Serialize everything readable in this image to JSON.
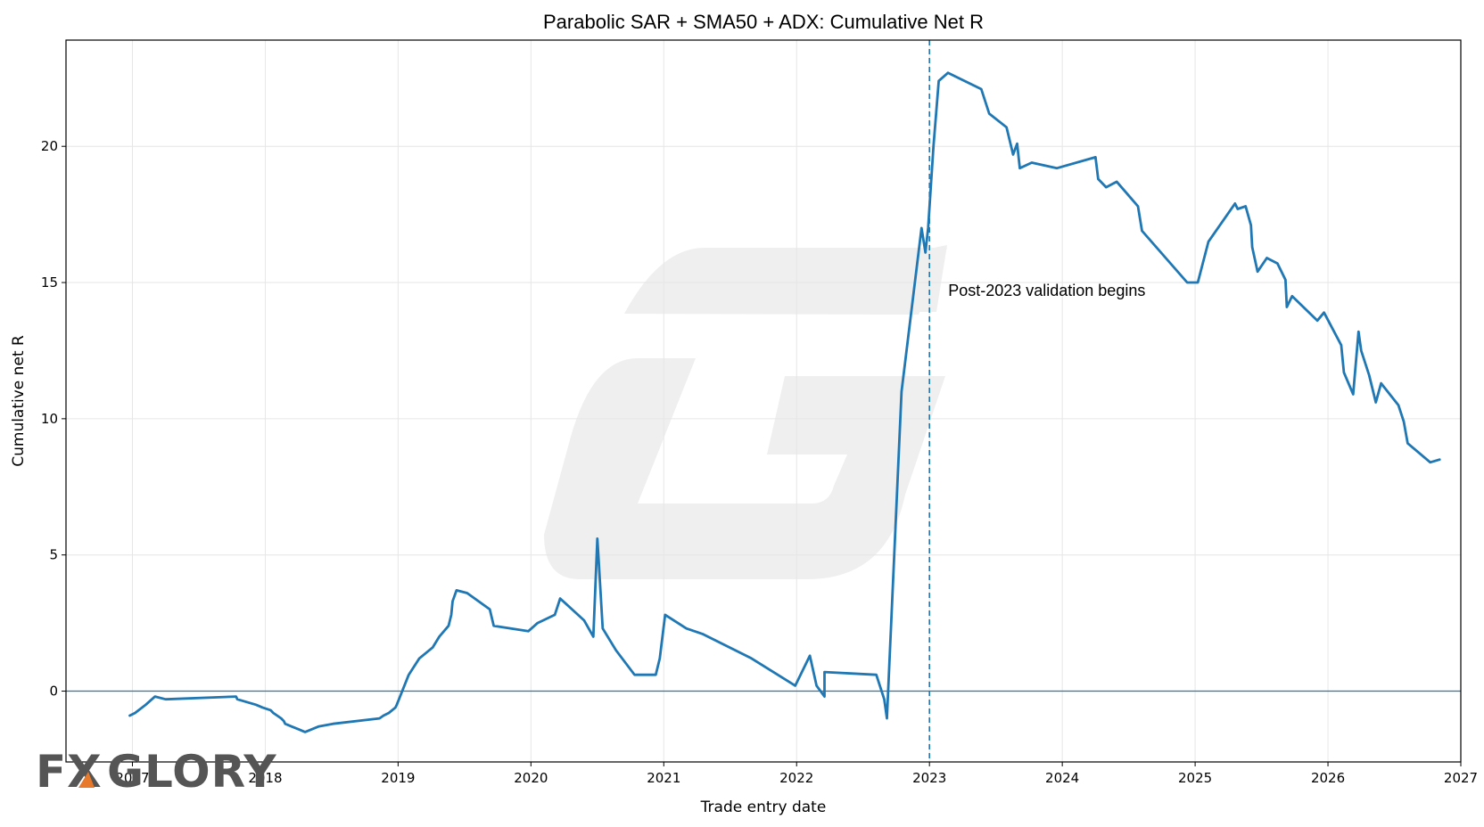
{
  "chart_data": {
    "type": "line",
    "title": "Parabolic SAR + SMA50 + ADX: Cumulative Net R",
    "xlabel": "Trade entry date",
    "ylabel": "Cumulative net R",
    "xlim": [
      2016.5,
      2027.0
    ],
    "ylim": [
      -2.6,
      23.9
    ],
    "xticks": [
      2017,
      2018,
      2019,
      2020,
      2021,
      2022,
      2023,
      2024,
      2025,
      2026,
      2027
    ],
    "yticks": [
      0,
      5,
      10,
      15,
      20
    ],
    "grid": true,
    "zero_line": 0,
    "vertical_line": {
      "x": 2023.0,
      "style": "dashed",
      "label": "Post-2023 validation begins",
      "label_y": 14.7
    },
    "colors": {
      "line": "#1f77b4",
      "zero_line": "#1f77b4",
      "grid": "#e6e6e6"
    },
    "watermark_text": "FXGLORY",
    "series": [
      {
        "x": [
          2016.98,
          2017.02,
          2017.1,
          2017.17,
          2017.25,
          2017.78,
          2017.79,
          2017.93,
          2017.98,
          2018.04,
          2018.06,
          2018.09,
          2018.12,
          2018.14,
          2018.15,
          2018.2,
          2018.25,
          2018.3,
          2018.4,
          2018.51,
          2018.86,
          2018.89,
          2018.93,
          2018.98,
          2018.99,
          2019.08,
          2019.16,
          2019.26,
          2019.31,
          2019.38,
          2019.4,
          2019.41,
          2019.44,
          2019.52,
          2019.69,
          2019.72,
          2019.98,
          2020.05,
          2020.18,
          2020.22,
          2020.4,
          2020.47,
          2020.5,
          2020.51,
          2020.54,
          2020.64,
          2020.78,
          2020.94,
          2020.97,
          2021.01,
          2021.17,
          2021.29,
          2021.66,
          2021.99,
          2022.1,
          2022.15,
          2022.21,
          2022.21,
          2022.6,
          2022.66,
          2022.68,
          2022.79,
          2022.94,
          2022.97,
          2022.99,
          2023.03,
          2023.07,
          2023.14,
          2023.39,
          2023.45,
          2023.58,
          2023.63,
          2023.66,
          2023.68,
          2023.77,
          2023.96,
          2024.25,
          2024.27,
          2024.33,
          2024.41,
          2024.57,
          2024.6,
          2024.94,
          2025.02,
          2025.1,
          2025.3,
          2025.32,
          2025.38,
          2025.42,
          2025.43,
          2025.47,
          2025.54,
          2025.62,
          2025.68,
          2025.69,
          2025.73,
          2025.92,
          2025.97,
          2026.1,
          2026.12,
          2026.19,
          2026.23,
          2026.25,
          2026.31,
          2026.36,
          2026.4,
          2026.53,
          2026.57,
          2026.6,
          2026.77,
          2026.84
        ],
        "y": [
          -0.9,
          -0.8,
          -0.5,
          -0.2,
          -0.3,
          -0.2,
          -0.3,
          -0.5,
          -0.6,
          -0.7,
          -0.8,
          -0.9,
          -1.0,
          -1.1,
          -1.2,
          -1.3,
          -1.4,
          -1.5,
          -1.3,
          -1.2,
          -1.0,
          -0.9,
          -0.8,
          -0.6,
          -0.5,
          0.6,
          1.2,
          1.6,
          2.0,
          2.4,
          2.8,
          3.3,
          3.7,
          3.6,
          3.0,
          2.4,
          2.2,
          2.5,
          2.8,
          3.4,
          2.6,
          2.0,
          5.6,
          4.8,
          2.3,
          1.5,
          0.6,
          0.6,
          1.2,
          2.8,
          2.3,
          2.1,
          1.2,
          0.2,
          1.3,
          0.2,
          -0.2,
          0.7,
          0.6,
          -0.3,
          -1.0,
          11.0,
          17.0,
          16.1,
          17.0,
          20.0,
          22.4,
          22.7,
          22.1,
          21.2,
          20.7,
          19.7,
          20.1,
          19.2,
          19.4,
          19.2,
          19.6,
          18.8,
          18.5,
          18.7,
          17.8,
          16.9,
          15.0,
          15.0,
          16.5,
          17.9,
          17.7,
          17.8,
          17.1,
          16.3,
          15.4,
          15.9,
          15.7,
          15.1,
          14.1,
          14.5,
          13.6,
          13.9,
          12.7,
          11.7,
          10.9,
          13.2,
          12.5,
          11.6,
          10.6,
          11.3,
          10.5,
          9.9,
          9.1,
          8.4,
          8.5
        ]
      }
    ]
  }
}
